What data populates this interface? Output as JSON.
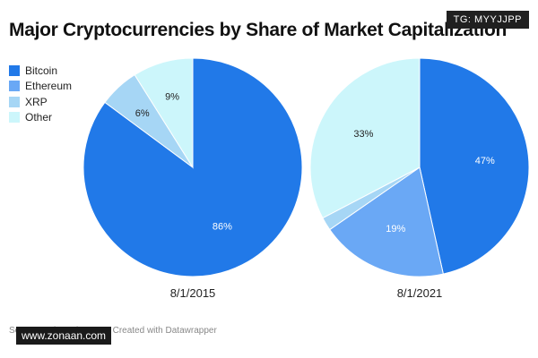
{
  "header": {
    "title": "Major Cryptocurrencies by Share of Market Capitalization",
    "tag": "TG: MYYJJPP"
  },
  "footer": {
    "source": "Source: CoinMarketCap · Created with Datawrapper",
    "site": "www.zonaan.com"
  },
  "colors": {
    "Bitcoin": "#2179e8",
    "Ethereum": "#6aa8f5",
    "XRP": "#a6d6f5",
    "Other": "#ccf6fb"
  },
  "chart_data": [
    {
      "type": "pie",
      "label": "8/1/2015",
      "legend": [
        "Bitcoin",
        "Ethereum",
        "XRP",
        "Other"
      ],
      "slices": [
        {
          "name": "Bitcoin",
          "value": 86,
          "label": "86%"
        },
        {
          "name": "Ethereum",
          "value": 0,
          "label": ""
        },
        {
          "name": "XRP",
          "value": 6,
          "label": "6%"
        },
        {
          "name": "Other",
          "value": 9,
          "label": "9%"
        }
      ]
    },
    {
      "type": "pie",
      "label": "8/1/2021",
      "legend": [
        "Bitcoin",
        "Ethereum",
        "XRP",
        "Other"
      ],
      "slices": [
        {
          "name": "Bitcoin",
          "value": 47,
          "label": "47%"
        },
        {
          "name": "Ethereum",
          "value": 19,
          "label": "19%"
        },
        {
          "name": "XRP",
          "value": 2,
          "label": ""
        },
        {
          "name": "Other",
          "value": 33,
          "label": "33%"
        }
      ]
    }
  ]
}
